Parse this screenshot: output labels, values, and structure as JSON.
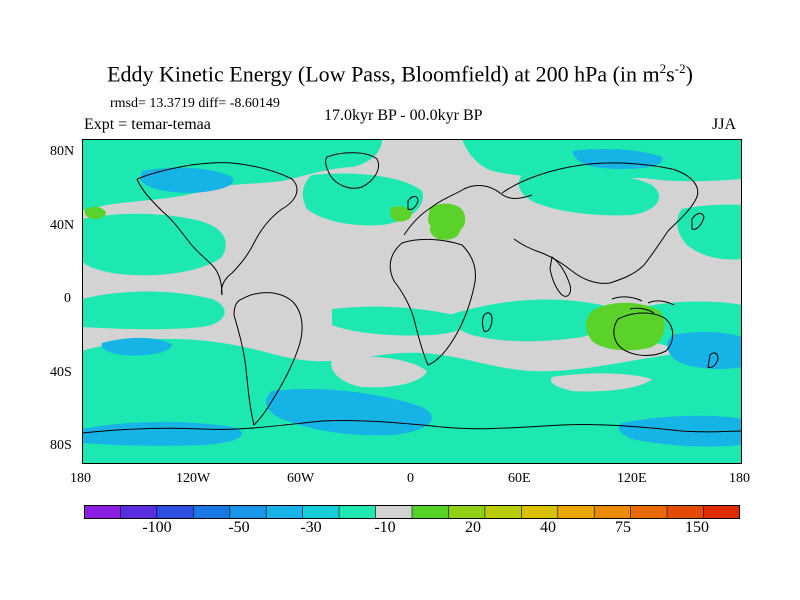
{
  "title": {
    "main": "Eddy Kinetic Energy (Low Pass, Bloomfield) at 200 hPa (in m",
    "sup1": "2",
    "mid": "s",
    "sup2": "-2",
    "close": ")"
  },
  "stats": "rmsd= 13.3719 diff= -8.60149",
  "experiment": "Expt = temar-temaa",
  "period": "17.0kyr BP - 00.0kyr BP",
  "season": "JJA",
  "y_ticks": [
    "80N",
    "40N",
    "0",
    "40S",
    "80S"
  ],
  "x_ticks": [
    "180",
    "120W",
    "60W",
    "0",
    "60E",
    "120E",
    "180"
  ],
  "colorbar": {
    "colors": [
      "#8a1fe0",
      "#5a2ee0",
      "#2f4fe0",
      "#1a78e6",
      "#1c96e8",
      "#16b3e6",
      "#12cfd8",
      "#1ee8b2",
      "#d3d3d3",
      "#5ad22a",
      "#8fcf14",
      "#b8cc0a",
      "#d8c000",
      "#e8a800",
      "#ea8a00",
      "#e86a00",
      "#e44a00",
      "#e02a00"
    ],
    "labels": [
      "-100",
      "-50",
      "-30",
      "-10",
      "20",
      "40",
      "75",
      "150"
    ]
  },
  "map_colors": {
    "background": "#d3d3d3",
    "weak_negative": "#1ee8b2",
    "medium_negative": "#16b3e6",
    "strong_negative": "#1c96e8",
    "positive": "#5ad22a",
    "coast": "#000000"
  }
}
